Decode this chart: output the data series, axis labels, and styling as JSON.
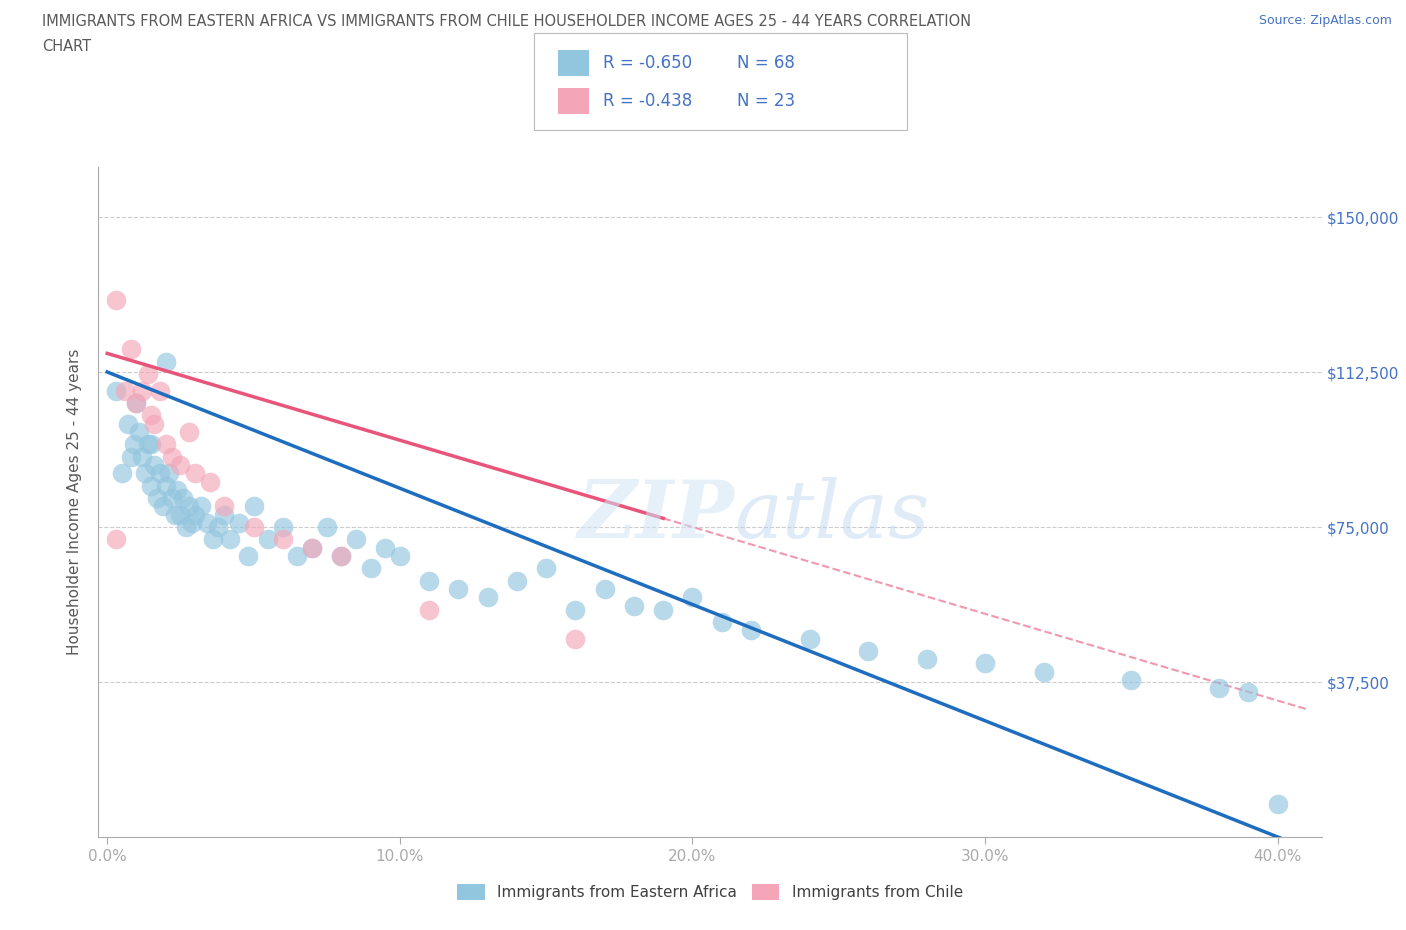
{
  "title_line1": "IMMIGRANTS FROM EASTERN AFRICA VS IMMIGRANTS FROM CHILE HOUSEHOLDER INCOME AGES 25 - 44 YEARS CORRELATION",
  "title_line2": "CHART",
  "source": "Source: ZipAtlas.com",
  "ylabel": "Householder Income Ages 25 - 44 years",
  "x_tick_labels": [
    "0.0%",
    "10.0%",
    "20.0%",
    "30.0%",
    "40.0%"
  ],
  "x_tick_vals": [
    0.0,
    0.1,
    0.2,
    0.3,
    0.4
  ],
  "y_tick_labels": [
    "$37,500",
    "$75,000",
    "$112,500",
    "$150,000"
  ],
  "y_tick_vals": [
    37500,
    75000,
    112500,
    150000
  ],
  "ylim": [
    0,
    162000
  ],
  "xlim": [
    -0.003,
    0.415
  ],
  "watermark": "ZIPatlas",
  "blue_color": "#92c5de",
  "pink_color": "#f4a6b8",
  "blue_line_color": "#1f6dbf",
  "pink_line_color": "#e8547a",
  "dashed_line_color": "#e8547a",
  "legend_R_blue": "R = -0.650",
  "legend_N_blue": "N = 68",
  "legend_R_pink": "R = -0.438",
  "legend_N_pink": "N = 23",
  "legend_label_blue": "Immigrants from Eastern Africa",
  "legend_label_pink": "Immigrants from Chile",
  "text_color_axis": "#4472c4",
  "text_color_legend_bottom": "#404040",
  "title_color": "#595959",
  "blue_line_intercept": 112500,
  "blue_line_slope": -281250,
  "pink_line_intercept": 117000,
  "pink_line_slope": -210000,
  "pink_line_x_start": 0.0,
  "pink_line_x_end": 0.19,
  "blue_scatter_x": [
    0.003,
    0.005,
    0.007,
    0.008,
    0.009,
    0.01,
    0.011,
    0.012,
    0.013,
    0.014,
    0.015,
    0.016,
    0.017,
    0.018,
    0.019,
    0.02,
    0.021,
    0.022,
    0.023,
    0.024,
    0.025,
    0.026,
    0.027,
    0.028,
    0.029,
    0.03,
    0.032,
    0.034,
    0.036,
    0.038,
    0.04,
    0.042,
    0.045,
    0.048,
    0.05,
    0.055,
    0.06,
    0.065,
    0.07,
    0.075,
    0.08,
    0.085,
    0.09,
    0.095,
    0.1,
    0.11,
    0.12,
    0.13,
    0.14,
    0.15,
    0.16,
    0.17,
    0.18,
    0.19,
    0.2,
    0.21,
    0.22,
    0.24,
    0.26,
    0.28,
    0.3,
    0.32,
    0.35,
    0.38,
    0.39,
    0.4,
    0.015,
    0.02
  ],
  "blue_scatter_y": [
    108000,
    88000,
    100000,
    92000,
    95000,
    105000,
    98000,
    92000,
    88000,
    95000,
    85000,
    90000,
    82000,
    88000,
    80000,
    85000,
    88000,
    82000,
    78000,
    84000,
    78000,
    82000,
    75000,
    80000,
    76000,
    78000,
    80000,
    76000,
    72000,
    75000,
    78000,
    72000,
    76000,
    68000,
    80000,
    72000,
    75000,
    68000,
    70000,
    75000,
    68000,
    72000,
    65000,
    70000,
    68000,
    62000,
    60000,
    58000,
    62000,
    65000,
    55000,
    60000,
    56000,
    55000,
    58000,
    52000,
    50000,
    48000,
    45000,
    43000,
    42000,
    40000,
    38000,
    36000,
    35000,
    8000,
    95000,
    115000
  ],
  "pink_scatter_x": [
    0.003,
    0.006,
    0.008,
    0.01,
    0.012,
    0.014,
    0.015,
    0.016,
    0.018,
    0.02,
    0.022,
    0.025,
    0.028,
    0.03,
    0.035,
    0.04,
    0.05,
    0.06,
    0.07,
    0.08,
    0.11,
    0.16,
    0.003
  ],
  "pink_scatter_y": [
    130000,
    108000,
    118000,
    105000,
    108000,
    112000,
    102000,
    100000,
    108000,
    95000,
    92000,
    90000,
    98000,
    88000,
    86000,
    80000,
    75000,
    72000,
    70000,
    68000,
    55000,
    48000,
    72000
  ]
}
